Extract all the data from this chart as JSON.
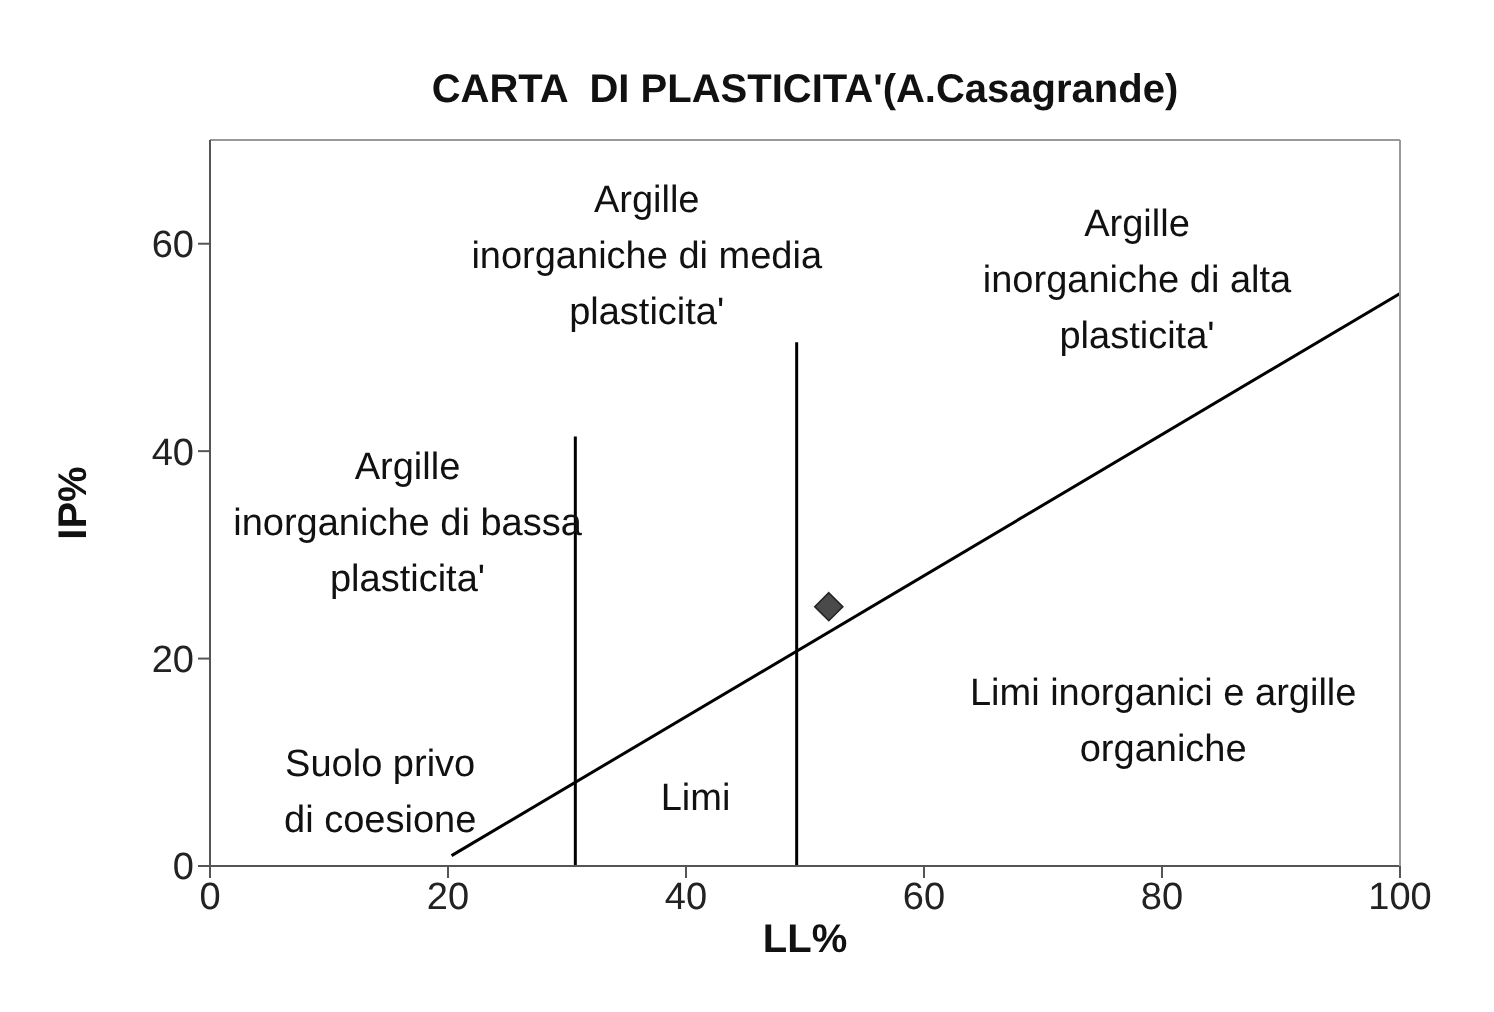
{
  "chart_data": {
    "type": "line",
    "title": "CARTA  DI PLASTICITA'(A.Casagrande)",
    "xlabel": "LL%",
    "ylabel": "IP%",
    "xlim": [
      0,
      100
    ],
    "xticks": [
      0,
      20,
      40,
      60,
      80,
      100
    ],
    "ylim": [
      0,
      70
    ],
    "yticks": [
      0,
      20,
      40,
      60
    ],
    "grid": false,
    "series": [
      {
        "color": "#000000",
        "x": [
          20.3,
          100
        ],
        "values": [
          1,
          55.2
        ],
        "marker": "none"
      },
      {
        "color": "#000000",
        "x": [
          30.7,
          30.7
        ],
        "values": [
          0,
          41.4
        ],
        "marker": "none"
      },
      {
        "color": "#000000",
        "x": [
          49.3,
          49.3
        ],
        "values": [
          0,
          50.5
        ],
        "marker": "none"
      },
      {
        "type": "scatter",
        "color": "#4a4a4a",
        "x": [
          52
        ],
        "values": [
          25
        ],
        "marker": "diamond"
      }
    ],
    "annotations": [
      "Argille\ninorganiche di media\nplasticita'",
      "Argille\ninorganiche di alta\nplasticita'",
      "Argille\ninorganiche di bassa\nplasticita'",
      "Limi inorganici e argille\norganiche",
      "Suolo privo\ndi coesione",
      "Limi"
    ]
  }
}
